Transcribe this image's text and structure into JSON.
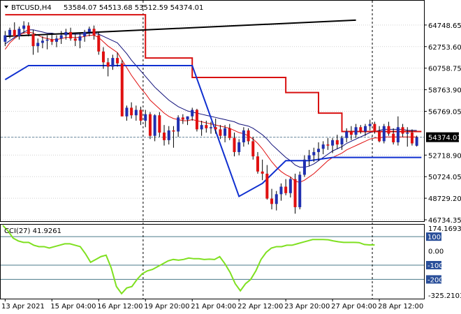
{
  "header": {
    "symbol": "BTCUSD,H4",
    "ohlc": "53584.07 54513.68 53512.59 54374.01"
  },
  "colors": {
    "bull": "#1f2fb0",
    "bear": "#e01010",
    "fast_ma": "#e01010",
    "slow_ma": "#10107a",
    "stop": "#d81010",
    "support": "#1030d0",
    "trend": "#000000",
    "cci": "#7fe020",
    "level_line": "#4a7a8a",
    "grid": "#d0d0d0"
  },
  "chart_data": [
    {
      "type": "candlestick",
      "name": "BTCUSD,H4",
      "ylim": [
        46734.35,
        66740
      ],
      "y_ticks": [
        "64748.65",
        "62753.60",
        "60758.75",
        "58763.90",
        "56769.05",
        "54374.01",
        "52718.90",
        "50724.05",
        "48729.20",
        "46734.35"
      ],
      "current_price": "54374.01",
      "x_ticks": [
        "13 Apr 2021",
        "15 Apr 04:00",
        "16 Apr 12:00",
        "19 Apr 20:00",
        "21 Apr 04:00",
        "22 Apr 12:00",
        "23 Apr 20:00",
        "27 Apr 04:00",
        "28 Apr 12:00"
      ],
      "candles": [
        [
          63200,
          64200,
          62800,
          63800
        ],
        [
          63800,
          64500,
          63500,
          64300
        ],
        [
          64300,
          65000,
          63800,
          63700
        ],
        [
          63700,
          64600,
          63400,
          64400
        ],
        [
          64400,
          65100,
          64000,
          64700
        ],
        [
          64700,
          65000,
          63700,
          63900
        ],
        [
          63900,
          64300,
          62000,
          62800
        ],
        [
          62800,
          63500,
          62200,
          63100
        ],
        [
          63100,
          63700,
          62600,
          63300
        ],
        [
          63300,
          63800,
          62500,
          63400
        ],
        [
          63400,
          64000,
          62900,
          63200
        ],
        [
          63200,
          63800,
          62700,
          63500
        ],
        [
          63500,
          64200,
          63000,
          63800
        ],
        [
          63800,
          64400,
          63400,
          64100
        ],
        [
          64100,
          64500,
          63300,
          63500
        ],
        [
          63500,
          63900,
          62800,
          63300
        ],
        [
          63300,
          64000,
          62600,
          63700
        ],
        [
          63700,
          64300,
          63200,
          64100
        ],
        [
          64100,
          64600,
          63700,
          64400
        ],
        [
          64400,
          64700,
          63400,
          63800
        ],
        [
          63800,
          64100,
          62000,
          62300
        ],
        [
          62300,
          62700,
          60700,
          61300
        ],
        [
          61300,
          61700,
          60000,
          60900
        ],
        [
          60900,
          62000,
          60600,
          61700
        ],
        [
          61700,
          62200,
          60900,
          61200
        ],
        [
          61200,
          61500,
          56300,
          56300
        ],
        [
          56300,
          57300,
          55900,
          57100
        ],
        [
          57100,
          57600,
          56100,
          56400
        ],
        [
          56400,
          57300,
          55900,
          56900
        ],
        [
          56900,
          57200,
          55500,
          55900
        ],
        [
          55900,
          56900,
          55300,
          56500
        ],
        [
          56500,
          56700,
          54200,
          54500
        ],
        [
          54500,
          56500,
          54000,
          56400
        ],
        [
          56400,
          56700,
          54400,
          54800
        ],
        [
          54800,
          55500,
          53600,
          54100
        ],
        [
          54100,
          55400,
          53700,
          55000
        ],
        [
          55000,
          55400,
          53400,
          54900
        ],
        [
          54900,
          56400,
          54400,
          56200
        ],
        [
          56200,
          56500,
          55600,
          56000
        ],
        [
          56000,
          56300,
          55500,
          56300
        ],
        [
          56300,
          57100,
          55900,
          56900
        ],
        [
          56900,
          57000,
          54900,
          55100
        ],
        [
          55100,
          55900,
          54500,
          55500
        ],
        [
          55500,
          55900,
          54800,
          55200
        ],
        [
          55200,
          55800,
          54700,
          55300
        ],
        [
          55300,
          56100,
          54700,
          55100
        ],
        [
          55100,
          55500,
          54200,
          54500
        ],
        [
          54500,
          55500,
          53900,
          55200
        ],
        [
          55200,
          55600,
          54100,
          54300
        ],
        [
          54300,
          54800,
          52600,
          53000
        ],
        [
          53000,
          54200,
          52700,
          53900
        ],
        [
          53900,
          55300,
          53500,
          55000
        ],
        [
          55000,
          55200,
          53700,
          54000
        ],
        [
          54000,
          54400,
          52300,
          52600
        ],
        [
          52600,
          53000,
          51000,
          51200
        ],
        [
          51200,
          52300,
          50400,
          51000
        ],
        [
          51000,
          51800,
          48600,
          48700
        ],
        [
          48700,
          49600,
          47700,
          48200
        ],
        [
          48200,
          49400,
          47600,
          49100
        ],
        [
          49100,
          50100,
          48500,
          49800
        ],
        [
          49800,
          50500,
          49000,
          49200
        ],
        [
          49200,
          50700,
          48800,
          50500
        ],
        [
          50500,
          51000,
          47300,
          47900
        ],
        [
          47900,
          51200,
          47700,
          50900
        ],
        [
          50900,
          52700,
          50700,
          52300
        ],
        [
          52300,
          53200,
          51700,
          52700
        ],
        [
          52700,
          53400,
          52100,
          53000
        ],
        [
          53000,
          53900,
          52200,
          53300
        ],
        [
          53300,
          54000,
          52800,
          53700
        ],
        [
          53700,
          54300,
          53200,
          53600
        ],
        [
          53600,
          54300,
          52900,
          54100
        ],
        [
          54100,
          54600,
          53300,
          53700
        ],
        [
          53700,
          54500,
          53200,
          54300
        ],
        [
          54300,
          55200,
          53900,
          54900
        ],
        [
          54900,
          55400,
          54100,
          54600
        ],
        [
          54600,
          55600,
          54300,
          55300
        ],
        [
          55300,
          55500,
          54700,
          54900
        ],
        [
          54900,
          55600,
          54500,
          55400
        ],
        [
          55400,
          56000,
          55000,
          55600
        ],
        [
          55600,
          55800,
          54700,
          54900
        ],
        [
          54900,
          55400,
          53900,
          54000
        ],
        [
          54000,
          55600,
          53800,
          55400
        ],
        [
          55400,
          55800,
          54500,
          54700
        ],
        [
          54700,
          55200,
          53700,
          53900
        ],
        [
          53900,
          56300,
          53600,
          55300
        ],
        [
          55300,
          55600,
          54400,
          54700
        ],
        [
          54700,
          55300,
          53500,
          54800
        ],
        [
          54800,
          55100,
          53600,
          53800
        ],
        [
          53584.07,
          54513.68,
          53512.59,
          54374.01
        ]
      ],
      "fast_ma": [
        62500,
        63100,
        63500,
        63800,
        64000,
        64100,
        64000,
        63800,
        63600,
        63500,
        63400,
        63400,
        63500,
        63600,
        63600,
        63600,
        63600,
        63700,
        63800,
        63800,
        63600,
        63200,
        62800,
        62500,
        62200,
        61500,
        60800,
        60100,
        59500,
        58900,
        58400,
        57800,
        57400,
        57000,
        56600,
        56300,
        56100,
        56000,
        55900,
        55900,
        56000,
        55900,
        55800,
        55700,
        55600,
        55500,
        55400,
        55300,
        55200,
        55000,
        54800,
        54700,
        54500,
        54200,
        53800,
        53300,
        52700,
        52100,
        51600,
        51200,
        50900,
        50700,
        50300,
        50200,
        50400,
        50700,
        51000,
        51400,
        51800,
        52200,
        52500,
        52700,
        52900,
        53200,
        53400,
        53600,
        53800,
        54000,
        54200,
        54300,
        54300,
        54400,
        54400,
        54400,
        54400,
        54400,
        54400,
        54400,
        54400
      ],
      "slow_ma": [
        63000,
        63300,
        63600,
        63900,
        64100,
        64300,
        64300,
        64200,
        64100,
        64000,
        64000,
        63900,
        63900,
        63900,
        63900,
        63900,
        63900,
        63900,
        64000,
        64000,
        63900,
        63700,
        63500,
        63300,
        63100,
        62600,
        62100,
        61500,
        61000,
        60500,
        60000,
        59500,
        59000,
        58600,
        58200,
        57800,
        57500,
        57200,
        57000,
        56800,
        56700,
        56600,
        56500,
        56400,
        56300,
        56200,
        56100,
        56000,
        55900,
        55800,
        55600,
        55500,
        55400,
        55200,
        54900,
        54600,
        54200,
        53700,
        53300,
        52900,
        52500,
        52200,
        51800,
        51600,
        51600,
        51700,
        51900,
        52200,
        52500,
        52800,
        53100,
        53300,
        53500,
        53800,
        54000,
        54200,
        54400,
        54600,
        54800,
        54900,
        55000,
        55100,
        55100,
        55100,
        55100,
        55100,
        55000,
        55000,
        55000
      ],
      "stop_line": [
        [
          0,
          65700
        ],
        [
          30,
          65700
        ],
        [
          30,
          61700
        ],
        [
          40,
          61700
        ],
        [
          40,
          59900
        ],
        [
          60,
          59900
        ],
        [
          60,
          58500
        ],
        [
          67,
          58500
        ],
        [
          67,
          56600
        ],
        [
          72,
          56600
        ],
        [
          72,
          54900
        ],
        [
          89,
          54900
        ]
      ],
      "support_line": [
        [
          0,
          59700
        ],
        [
          5,
          61000
        ],
        [
          40,
          61000
        ],
        [
          50,
          48900
        ],
        [
          55,
          50100
        ],
        [
          60,
          52200
        ],
        [
          65,
          52200
        ],
        [
          70,
          52500
        ],
        [
          89,
          52500
        ]
      ],
      "trend_line": [
        [
          0,
          63700
        ],
        [
          75,
          65200
        ]
      ],
      "vlines_at_index": [
        30,
        79
      ]
    },
    {
      "type": "line",
      "name": "CCI(27)",
      "label": "CCI(27) 41.9261",
      "ylim": [
        -325.2103,
        174.1693
      ],
      "y_ticks": [
        "174.1693",
        "100",
        "0.00",
        "-100",
        "-200",
        "-325.2103"
      ],
      "levels": [
        100,
        -100,
        -200
      ],
      "values": [
        180,
        140,
        90,
        70,
        60,
        60,
        40,
        30,
        30,
        20,
        30,
        40,
        50,
        50,
        40,
        30,
        -20,
        -80,
        -60,
        -40,
        -30,
        -120,
        -250,
        -300,
        -260,
        -250,
        -200,
        -160,
        -140,
        -130,
        -110,
        -90,
        -70,
        -60,
        -65,
        -60,
        -50,
        -55,
        -55,
        -60,
        -58,
        -60,
        -40,
        -90,
        -150,
        -230,
        -280,
        -230,
        -200,
        -140,
        -60,
        -10,
        20,
        30,
        30,
        40,
        40,
        50,
        60,
        70,
        80,
        80,
        80,
        78,
        70,
        64,
        60,
        60,
        60,
        58,
        45,
        42,
        41.9261
      ]
    }
  ]
}
